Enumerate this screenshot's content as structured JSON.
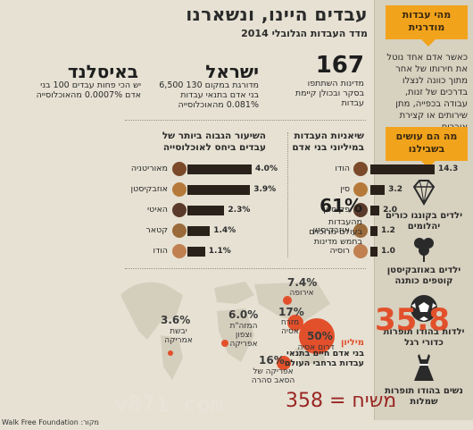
{
  "header": {
    "title": "עבדים היינו, ונשארנו",
    "subtitle": "מדד העבדות הגלובלי 2014"
  },
  "sidebar": {
    "tag1": "מהי עבדות מודרנית",
    "description": "כאשר אדם אחד נוטל את חירותו של אחר מתוך כוונה לנצלו בדרכים של זנות, עבודה בכפייה, מתן שירותים או קצירת איברים",
    "tag2": "מה הם עושים בשבילנו",
    "items": [
      {
        "label": "ילדים בקונגו כורים יהלומים",
        "icon": "diamond-icon"
      },
      {
        "label": "ילדים באוזבקיסטן קוטפים כותנה",
        "icon": "cotton-icon"
      },
      {
        "label": "ילדות בהודו תופרות כדורי רגל",
        "icon": "soccer-ball-icon"
      },
      {
        "label": "נשים בהודו תופרות שמלות",
        "icon": "dress-icon"
      }
    ]
  },
  "stats": {
    "countries_num": "167",
    "countries_txt": "מדינות השתתפו בסקר ובכולן קיימת עבדות",
    "israel_name": "ישראל",
    "israel_txt": "מדורגת במקום 130 6,500 בני אדם בתנאי עבדות 0.081% מהאוכלוסייה",
    "iceland_name": "באיסלנד",
    "iceland_txt": "יש הכי פחות עבדים 100 בני אדם 0.0007% מהאוכלוסייה"
  },
  "peaks": {
    "heading": "שיאניות העבדות במיליוני בני אדם",
    "rows": [
      {
        "country": "הודו",
        "value": 14.3,
        "label": "14.3"
      },
      {
        "country": "סין",
        "value": 3.2,
        "label": "3.2"
      },
      {
        "country": "פקיסטן",
        "value": 2.0,
        "label": "2.0"
      },
      {
        "country": "אוזבקיסטן",
        "value": 1.2,
        "label": "1.2"
      },
      {
        "country": "רוסיה",
        "value": 1.0,
        "label": "1.0"
      }
    ],
    "pct": "61%",
    "pct_txt": "מהעבדות בעולם מרוכזים בחמש מדינות"
  },
  "rates": {
    "heading": "השיעור הגבוה ביותר של עבדים ביחס לאוכלוסייה",
    "rows": [
      {
        "country": "מאוריטניה",
        "value": 4.0,
        "label": "4.0%"
      },
      {
        "country": "אוזבקיסטן",
        "value": 3.9,
        "label": "3.9%"
      },
      {
        "country": "האיטי",
        "value": 2.3,
        "label": "2.3%"
      },
      {
        "country": "קטאר",
        "value": 1.4,
        "label": "1.4%"
      },
      {
        "country": "הודו",
        "value": 1.1,
        "label": "1.1%"
      }
    ]
  },
  "world": {
    "total_num": "35.8",
    "total_unit": "מיליון",
    "total_txt": "בני אדם חיים בתנאי עבדות ברחבי העולם",
    "regions": [
      {
        "pct": "3.6%",
        "label": "יבשת אמריקה"
      },
      {
        "pct": "6.0%",
        "label": "המזה\"ת וצפון אפריקה"
      },
      {
        "pct": "7.4%",
        "label": "אירופה"
      },
      {
        "pct": "17%",
        "label": "מזרח אסיה"
      },
      {
        "pct": "50%",
        "label": "דרום אסיה"
      },
      {
        "pct": "16%",
        "label": "אפריקה של הסאב סהרה"
      }
    ]
  },
  "footer": {
    "source": "Walk Free Foundation :מקור",
    "watermark": "v871.com",
    "caption": "משיח = 358"
  },
  "colors": {
    "accent": "#f2a31c",
    "bar": "#2a211a",
    "circle": "#e2502b",
    "big_number": "#e2502b",
    "caption": "#9a2623"
  }
}
